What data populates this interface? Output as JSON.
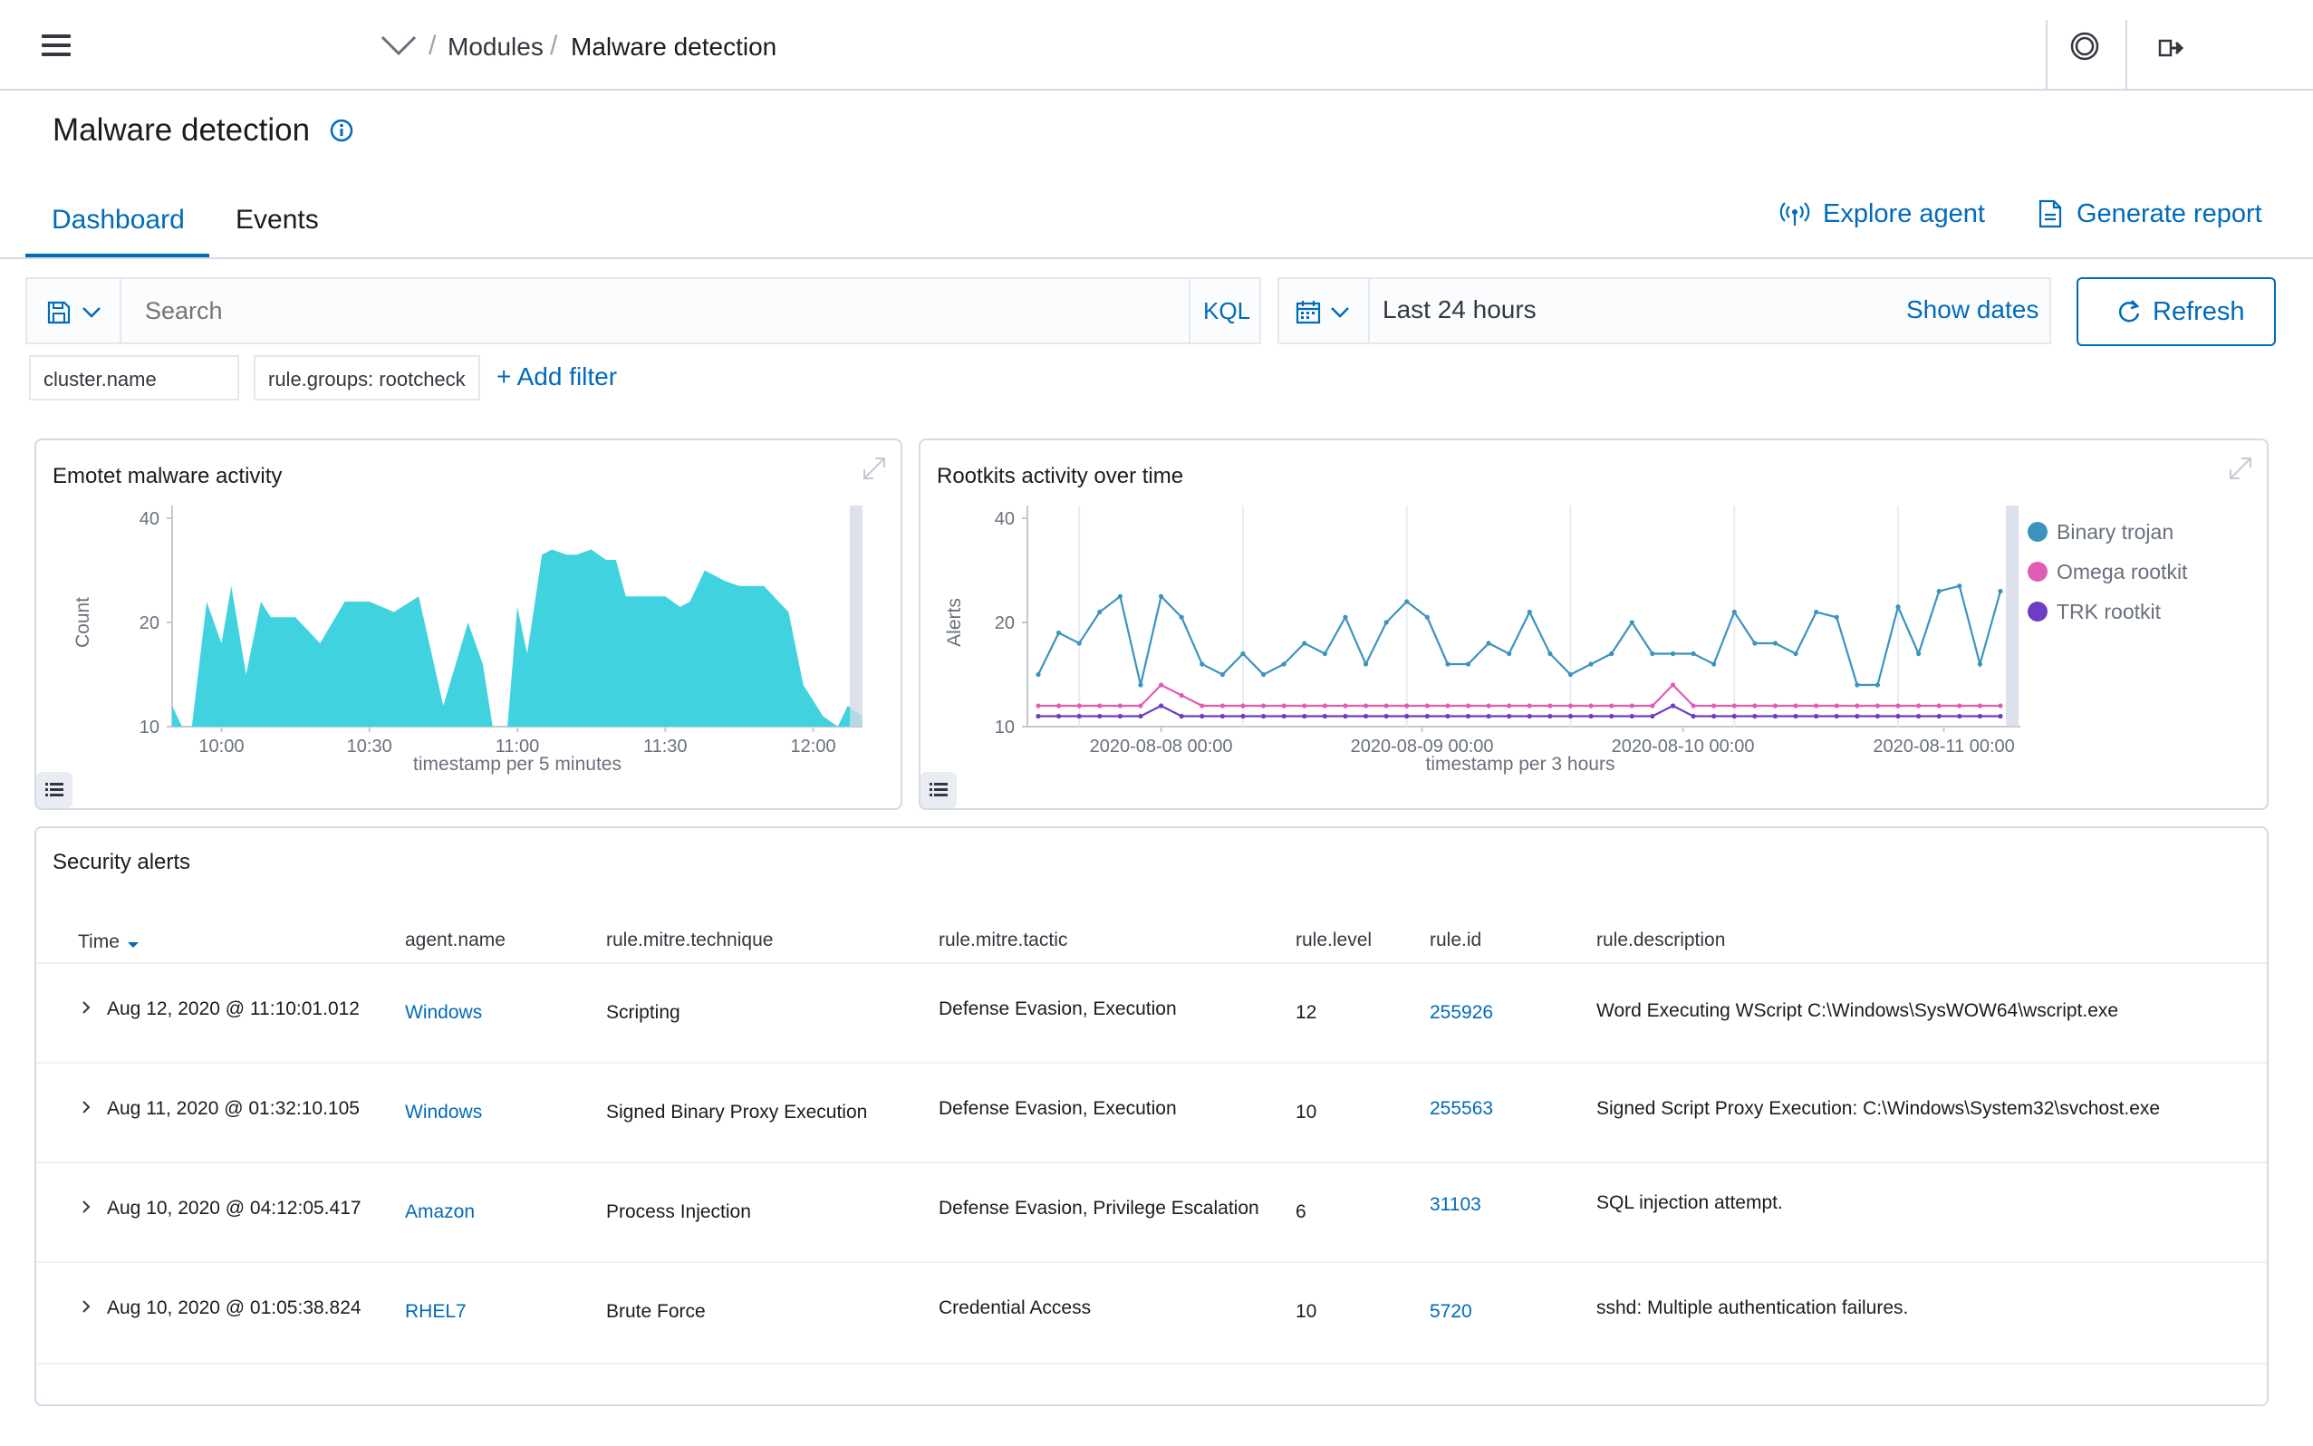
{
  "breadcrumb": {
    "parent": "Modules",
    "current": "Malware detection"
  },
  "page": {
    "title": "Malware detection"
  },
  "tabs": [
    {
      "label": "Dashboard"
    },
    {
      "label": "Events"
    }
  ],
  "actions": {
    "explore_agent": "Explore agent",
    "generate_report": "Generate report"
  },
  "search": {
    "placeholder": "Search",
    "kql": "KQL"
  },
  "date": {
    "range": "Last 24 hours",
    "show_dates": "Show dates",
    "refresh": "Refresh"
  },
  "filters": [
    "cluster.name",
    "rule.groups: rootcheck"
  ],
  "add_filter": "+ Add filter",
  "colors": {
    "accent": "#006bb8",
    "area": "#41d2e0",
    "binary": "#3c94bd",
    "omega": "#e05db5",
    "trk": "#6e3ec2"
  },
  "emotet": {
    "title": "Emotet malware activity",
    "chart_data": {
      "type": "area",
      "title": "Emotet malware activity",
      "xlabel": "timestamp per 5 minutes",
      "ylabel": "Count",
      "yticks": [
        10,
        20,
        40
      ],
      "xticks": [
        "10:00",
        "10:30",
        "11:00",
        "11:30",
        "12:00"
      ],
      "xlim_minutes": [
        -10,
        130
      ],
      "ylim": [
        10,
        40
      ],
      "series": [
        {
          "x": [
            -10,
            -8,
            -6,
            -3,
            0,
            2,
            5,
            8,
            10,
            12,
            15,
            20,
            25,
            30,
            35,
            40,
            45,
            50,
            53,
            55,
            58,
            60,
            62,
            65,
            67,
            70,
            72,
            75,
            78,
            80,
            82,
            85,
            90,
            93,
            95,
            98,
            100,
            102,
            105,
            110,
            115,
            118,
            122,
            125,
            127,
            130
          ],
          "y": [
            12,
            10,
            10,
            24,
            18,
            27,
            15,
            24,
            21,
            21,
            21,
            18,
            24,
            24,
            22,
            25,
            12,
            20,
            16,
            10,
            10,
            23,
            17,
            33,
            34,
            33,
            33,
            34,
            32,
            32,
            25,
            25,
            25,
            23,
            24,
            30,
            29,
            28,
            27,
            27,
            22,
            14,
            11,
            10,
            12,
            11
          ]
        }
      ]
    }
  },
  "rootkits": {
    "title": "Rootkits activity over time",
    "chart_data": {
      "type": "line",
      "title": "Rootkits activity over time",
      "xlabel": "timestamp per 3 hours",
      "ylabel": "Alerts",
      "yticks": [
        10,
        20,
        40
      ],
      "ylim": [
        10,
        40
      ],
      "xticks": [
        "2020-08-08 00:00",
        "2020-08-09 00:00",
        "2020-08-10 00:00",
        "2020-08-11 00:00"
      ],
      "legend_position": "right",
      "series": [
        {
          "name": "Binary trojan",
          "values": [
            15,
            19,
            18,
            22,
            25,
            14,
            25,
            21,
            16,
            15,
            17,
            15,
            16,
            18,
            17,
            21,
            16,
            20,
            24,
            21,
            16,
            16,
            18,
            17,
            22,
            17,
            15,
            16,
            17,
            20,
            17,
            17,
            17,
            16,
            22,
            18,
            18,
            17,
            22,
            21,
            14,
            14,
            23,
            17,
            26,
            27,
            16,
            26
          ]
        },
        {
          "name": "Omega rootkit",
          "values": [
            12,
            12,
            12,
            12,
            12,
            12,
            14,
            13,
            12,
            12,
            12,
            12,
            12,
            12,
            12,
            12,
            12,
            12,
            12,
            12,
            12,
            12,
            12,
            12,
            12,
            12,
            12,
            12,
            12,
            12,
            12,
            14,
            12,
            12,
            12,
            12,
            12,
            12,
            12,
            12,
            12,
            12,
            12,
            12,
            12,
            12,
            12,
            12
          ]
        },
        {
          "name": "TRK rootkit",
          "values": [
            11,
            11,
            11,
            11,
            11,
            11,
            12,
            11,
            11,
            11,
            11,
            11,
            11,
            11,
            11,
            11,
            11,
            11,
            11,
            11,
            11,
            11,
            11,
            11,
            11,
            11,
            11,
            11,
            11,
            11,
            11,
            12,
            11,
            11,
            11,
            11,
            11,
            11,
            11,
            11,
            11,
            11,
            11,
            11,
            11,
            11,
            11,
            11
          ]
        }
      ]
    }
  },
  "alerts": {
    "title": "Security alerts",
    "columns": [
      "Time",
      "agent.name",
      "rule.mitre.technique",
      "rule.mitre.tactic",
      "rule.level",
      "rule.id",
      "rule.description"
    ],
    "rows": [
      {
        "time": "Aug 12, 2020 @ 11:10:01.012",
        "agent": "Windows",
        "technique": "Scripting",
        "tactic": "Defense Evasion, Execution",
        "level": "12",
        "id": "255926",
        "description": "Word Executing WScript C:\\Windows\\SysWOW64\\wscript.exe"
      },
      {
        "time": "Aug 11, 2020 @ 01:32:10.105",
        "agent": "Windows",
        "technique": "Signed Binary Proxy Execution",
        "tactic": "Defense Evasion, Execution",
        "level": "10",
        "id": "255563",
        "description": "Signed Script Proxy Execution: C:\\Windows\\System32\\svchost.exe"
      },
      {
        "time": "Aug 10, 2020 @ 04:12:05.417",
        "agent": "Amazon",
        "technique": "Process Injection",
        "tactic": "Defense Evasion, Privilege Escalation",
        "level": "6",
        "id": "31103",
        "description": "SQL injection attempt."
      },
      {
        "time": "Aug 10, 2020 @ 01:05:38.824",
        "agent": "RHEL7",
        "technique": "Brute Force",
        "tactic": "Credential Access",
        "level": "10",
        "id": "5720",
        "description": "sshd: Multiple authentication failures."
      }
    ]
  }
}
